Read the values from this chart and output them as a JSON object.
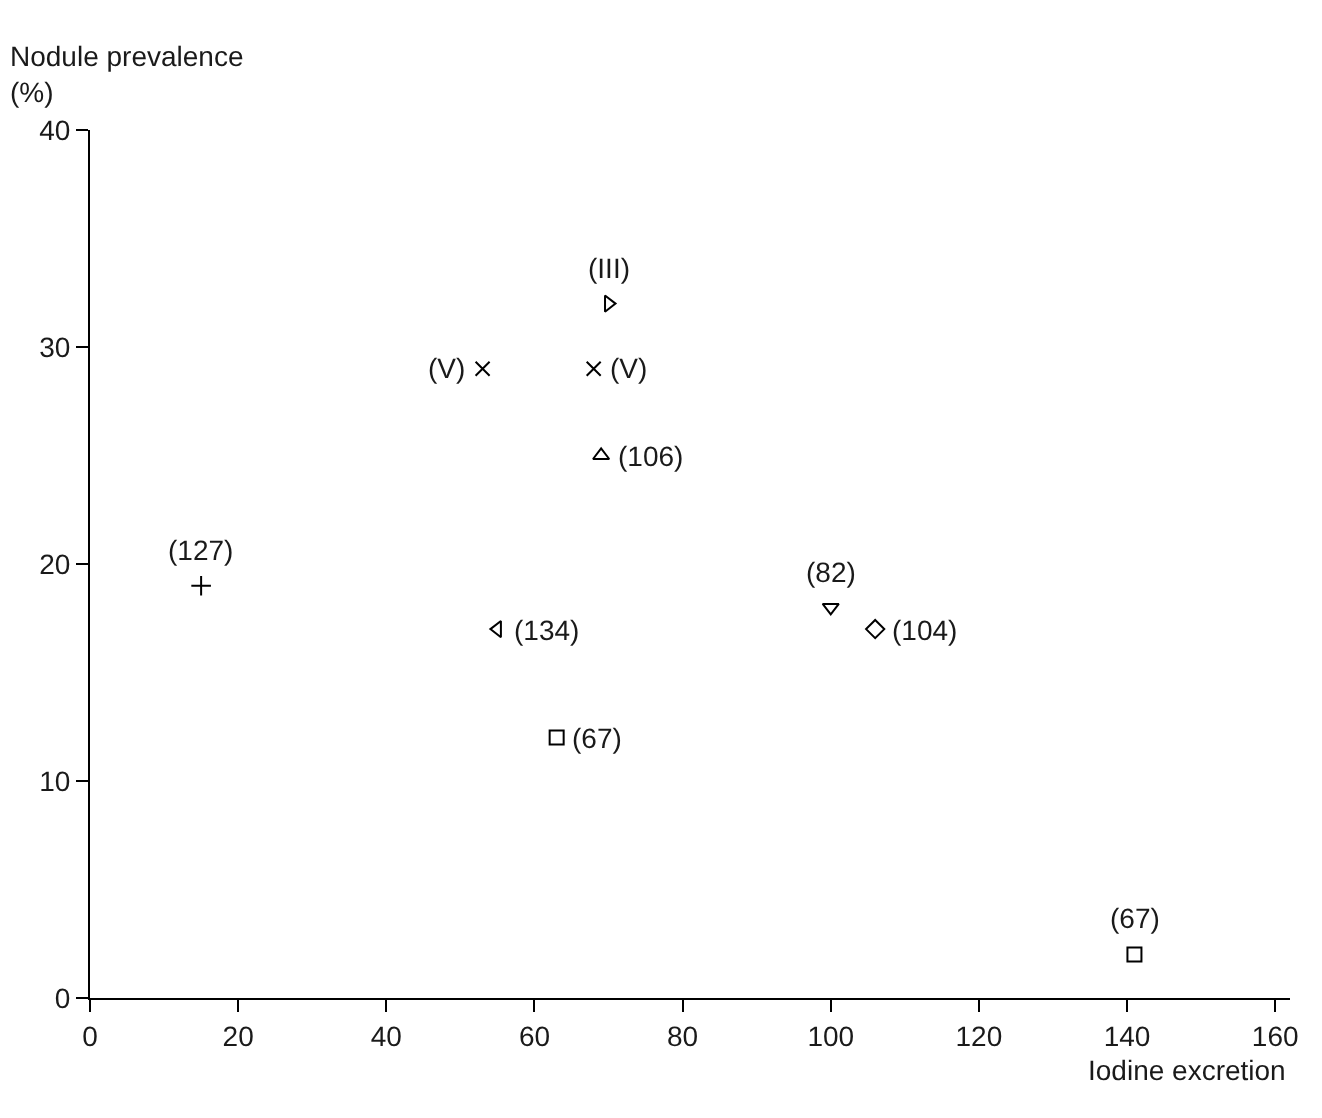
{
  "chart_data": {
    "type": "scatter",
    "xlabel": "Iodine excretion",
    "ylabel": "Nodule prevalence\n(%)",
    "xlim": [
      0,
      162
    ],
    "xticks": [
      0,
      20,
      40,
      60,
      80,
      100,
      120,
      140,
      160
    ],
    "ylim": [
      0,
      40
    ],
    "yticks": [
      0,
      10,
      20,
      30,
      40
    ],
    "series": [
      {
        "color": "#000000",
        "marker": "cross",
        "x": [
          15
        ],
        "values": [
          19
        ]
      },
      {
        "color": "#000000",
        "marker": "x",
        "x": [
          53
        ],
        "values": [
          29
        ]
      },
      {
        "color": "#000000",
        "marker": "x",
        "x": [
          68
        ],
        "values": [
          29
        ]
      },
      {
        "color": "#000000",
        "marker": "triangle-right",
        "x": [
          70
        ],
        "values": [
          32
        ]
      },
      {
        "color": "#000000",
        "marker": "triangle",
        "x": [
          69
        ],
        "values": [
          25
        ]
      },
      {
        "color": "#000000",
        "marker": "triangle-left",
        "x": [
          55
        ],
        "values": [
          17
        ]
      },
      {
        "color": "#000000",
        "marker": "square",
        "x": [
          63
        ],
        "values": [
          12
        ]
      },
      {
        "color": "#000000",
        "marker": "triangle-down",
        "x": [
          100
        ],
        "values": [
          18
        ]
      },
      {
        "color": "#000000",
        "marker": "diamond",
        "x": [
          106
        ],
        "values": [
          17
        ]
      },
      {
        "color": "#000000",
        "marker": "square",
        "x": [
          141
        ],
        "values": [
          2
        ]
      }
    ],
    "annotations": [
      {
        "text": "(127)",
        "x": 15,
        "y": 19
      },
      {
        "text": "(V)",
        "x": 53,
        "y": 29
      },
      {
        "text": "(V)",
        "x": 68,
        "y": 29
      },
      {
        "text": "(III)",
        "x": 70,
        "y": 32
      },
      {
        "text": "(106)",
        "x": 69,
        "y": 25
      },
      {
        "text": "(134)",
        "x": 55,
        "y": 17
      },
      {
        "text": "(67)",
        "x": 63,
        "y": 12
      },
      {
        "text": "(82)",
        "x": 100,
        "y": 18
      },
      {
        "text": "(104)",
        "x": 106,
        "y": 17
      },
      {
        "text": "(67)",
        "x": 141,
        "y": 2
      }
    ]
  }
}
